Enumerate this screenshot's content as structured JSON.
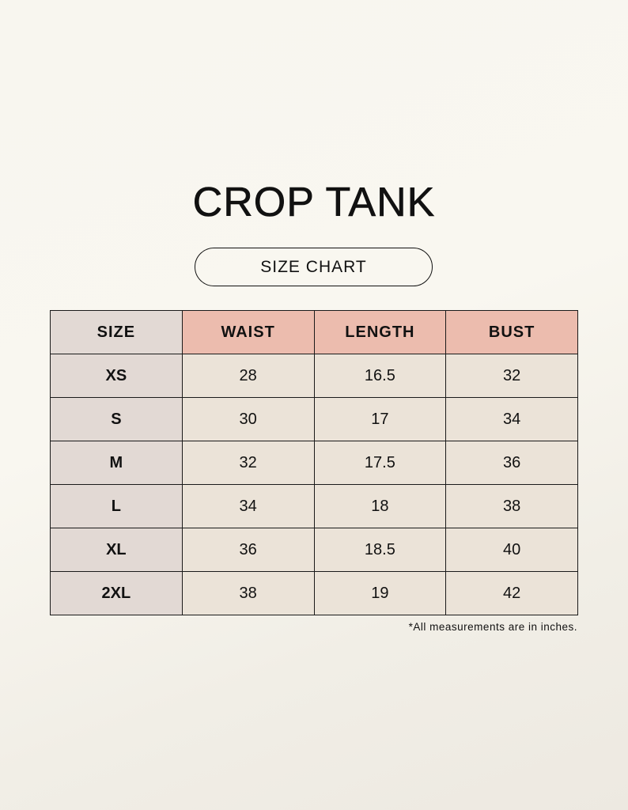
{
  "title": "CROP TANK",
  "subtitle": "SIZE CHART",
  "table": {
    "headers": [
      "SIZE",
      "WAIST",
      "LENGTH",
      "BUST"
    ],
    "rows": [
      [
        "XS",
        "28",
        "16.5",
        "32"
      ],
      [
        "S",
        "30",
        "17",
        "34"
      ],
      [
        "M",
        "32",
        "17.5",
        "36"
      ],
      [
        "L",
        "34",
        "18",
        "38"
      ],
      [
        "XL",
        "36",
        "18.5",
        "40"
      ],
      [
        "2XL",
        "38",
        "19",
        "42"
      ]
    ]
  },
  "note": "*All measurements are in inches.",
  "colors": {
    "header": "#ecbcae",
    "size_column": "#e2d9d4",
    "cell": "#ebe3d8"
  }
}
